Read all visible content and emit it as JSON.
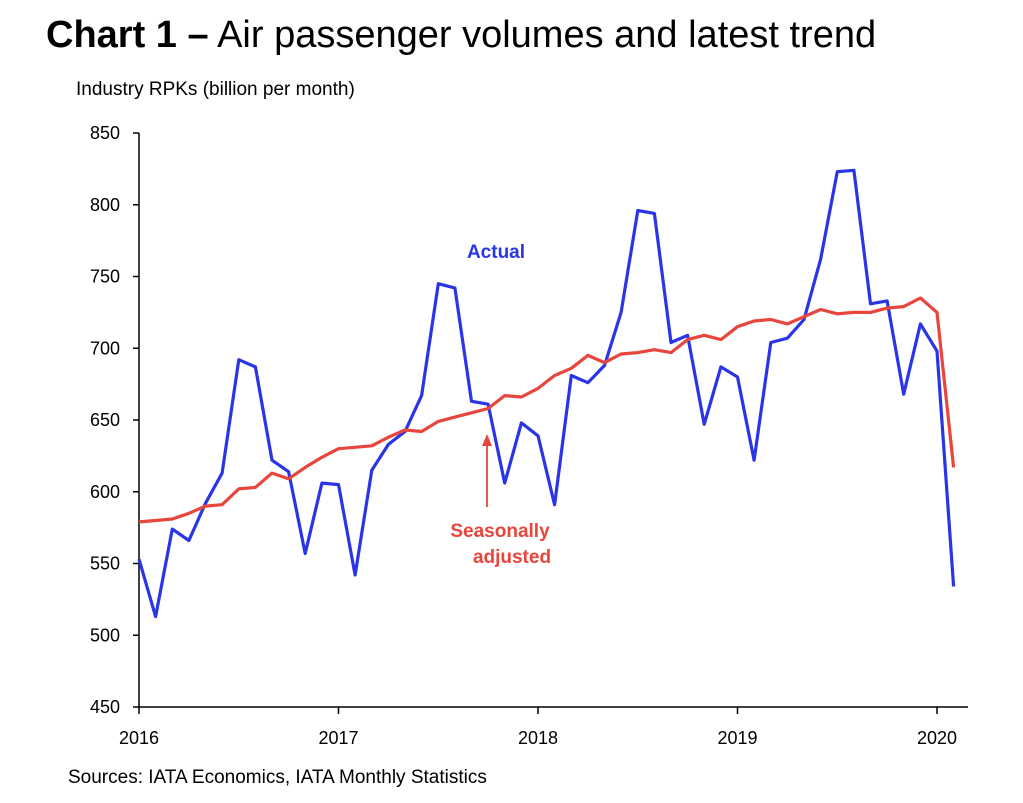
{
  "title_bold": "Chart 1 –",
  "title_rest": " Air passenger volumes and latest trend",
  "source": "Sources: IATA Economics, IATA Monthly Statistics",
  "chart_data": {
    "type": "line",
    "title": "Chart 1 – Air passenger volumes and latest trend",
    "ylabel": "Industry RPKs (billion per month)",
    "xlabel": "",
    "ylim": [
      450,
      850
    ],
    "yticks": [
      450,
      500,
      550,
      600,
      650,
      700,
      750,
      800,
      850
    ],
    "xticks": [
      {
        "label": "2016",
        "value": 2016
      },
      {
        "label": "2017",
        "value": 2017
      },
      {
        "label": "2018",
        "value": 2018
      },
      {
        "label": "2019",
        "value": 2019
      },
      {
        "label": "2020",
        "value": 2020
      }
    ],
    "x_start": "2016-01",
    "grid": false,
    "annotations": [
      {
        "text": "Actual",
        "color": "#2b35e8"
      },
      {
        "text": "Seasonally",
        "color": "#e8453c"
      },
      {
        "text": "adjusted",
        "color": "#e8453c"
      }
    ],
    "series": [
      {
        "name": "Actual",
        "color": "#2b35e8",
        "values": [
          553,
          513,
          574,
          566,
          592,
          613,
          692,
          687,
          622,
          614,
          557,
          606,
          605,
          542,
          615,
          633,
          642,
          667,
          745,
          742,
          663,
          661,
          606,
          648,
          639,
          591,
          681,
          676,
          688,
          725,
          796,
          794,
          704,
          709,
          647,
          687,
          680,
          622,
          704,
          707,
          720,
          762,
          823,
          824,
          731,
          733,
          668,
          717,
          698,
          534
        ]
      },
      {
        "name": "Seasonally adjusted",
        "color": "#e8453c",
        "values": [
          579,
          580,
          581,
          585,
          590,
          591,
          602,
          603,
          613,
          609,
          617,
          624,
          630,
          631,
          632,
          638,
          643,
          642,
          649,
          652,
          655,
          658,
          667,
          666,
          672,
          681,
          686,
          695,
          690,
          696,
          697,
          699,
          697,
          706,
          709,
          706,
          715,
          719,
          720,
          717,
          722,
          727,
          724,
          725,
          725,
          728,
          729,
          735,
          725,
          617
        ]
      }
    ]
  }
}
